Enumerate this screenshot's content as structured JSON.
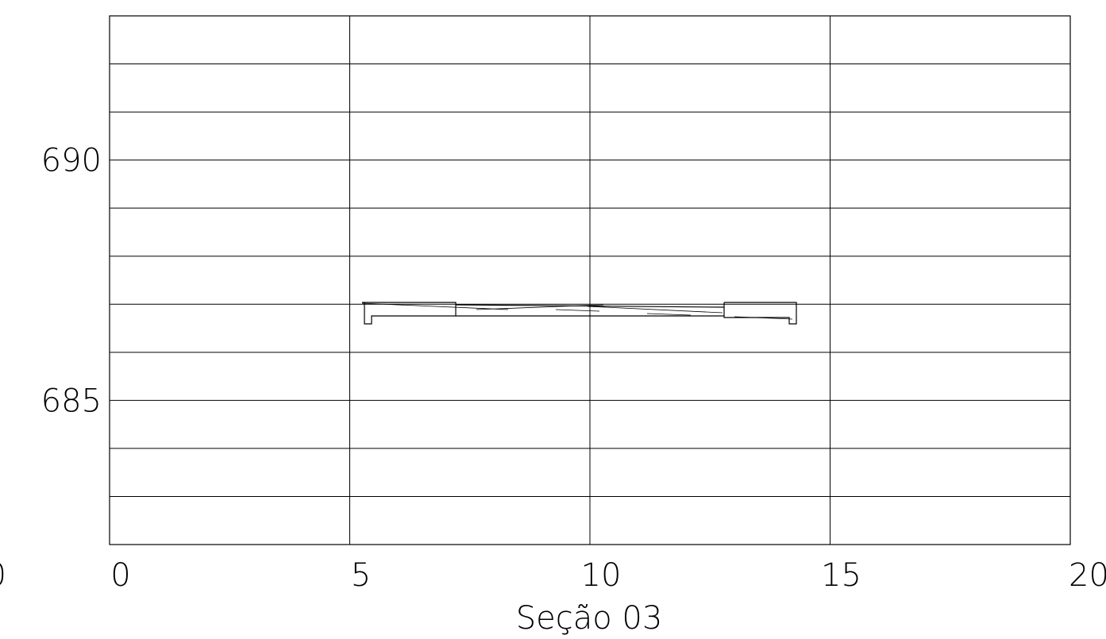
{
  "title": "Seção 03",
  "colors": {
    "line": "#000000",
    "background": "#ffffff"
  },
  "chart_data": {
    "type": "cross-section",
    "title": "Seção 03",
    "xlabel": "",
    "ylabel": "",
    "x_ticks": [
      "10",
      "0",
      "5",
      "10",
      "15",
      "20"
    ],
    "y_ticks": [
      "690",
      "685"
    ],
    "xlim": [
      0,
      20
    ],
    "ylim": [
      682,
      693
    ],
    "grid": true,
    "grid_x_step": 5,
    "grid_y_step": 1,
    "profile": {
      "top_left_curb": [
        [
          5.25,
          687.05
        ],
        [
          7.25,
          687.05
        ]
      ],
      "deck_bottom": [
        [
          5.25,
          686.8
        ],
        [
          14.0,
          686.8
        ]
      ],
      "left_curb_drop": [
        5.3,
        686.5
      ],
      "right_curb_top": [
        [
          12.7,
          687.05
        ],
        [
          14.2,
          687.05
        ]
      ],
      "right_curb_drop": [
        14.1,
        686.5
      ]
    }
  }
}
